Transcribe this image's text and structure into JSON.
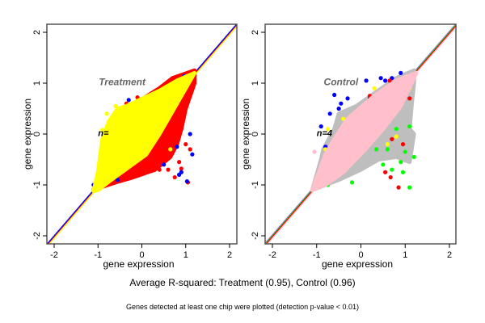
{
  "chart_data": [
    {
      "type": "scatter",
      "title": "Treatment",
      "annotation": "n=",
      "xlabel": "gene expression",
      "ylabel": "gene expression",
      "xlim": [
        -2.15,
        2.15
      ],
      "ylim": [
        -2.15,
        2.15
      ],
      "xticks": [
        -2,
        -1,
        0,
        1,
        2
      ],
      "yticks": [
        -2,
        -1,
        0,
        1,
        2
      ],
      "grid": false,
      "reference_lines": [
        {
          "slope": 1,
          "intercept": -0.02,
          "color": "#ff0000"
        },
        {
          "slope": 1,
          "intercept": 0,
          "color": "#0000ff"
        },
        {
          "slope": 1,
          "intercept": -0.05,
          "color": "#ffff00"
        }
      ],
      "series": [
        {
          "color": "#ff0000",
          "envelope": [
            [
              -1.1,
              -1.1
            ],
            [
              -0.9,
              -0.6
            ],
            [
              -0.5,
              0.0
            ],
            [
              -0.3,
              0.5
            ],
            [
              0,
              0.68
            ],
            [
              0.4,
              0.9
            ],
            [
              0.7,
              1.1
            ],
            [
              1.2,
              1.25
            ],
            [
              1.2,
              1.0
            ],
            [
              1.0,
              0.5
            ],
            [
              0.9,
              0.1
            ],
            [
              0.8,
              -0.2
            ],
            [
              0.65,
              -0.45
            ],
            [
              0.3,
              -0.7
            ],
            [
              -0.2,
              -0.85
            ],
            [
              -0.6,
              -0.95
            ],
            [
              -0.95,
              -1.05
            ]
          ],
          "points": [
            [
              1.05,
              -0.95
            ],
            [
              1.1,
              -0.3
            ],
            [
              0.9,
              -0.68
            ],
            [
              0.85,
              -0.55
            ],
            [
              0.6,
              -0.7
            ],
            [
              -0.1,
              0.72
            ],
            [
              0.9,
              0.1
            ],
            [
              1.0,
              -0.2
            ],
            [
              -0.6,
              -0.95
            ],
            [
              0.75,
              -0.85
            ],
            [
              0.4,
              -0.7
            ],
            [
              -0.35,
              0.6
            ]
          ]
        },
        {
          "color": "#0000ff",
          "points": [
            [
              0.97,
              1.14
            ],
            [
              -0.3,
              0.67
            ],
            [
              1.1,
              0
            ],
            [
              0.9,
              -0.75
            ],
            [
              1.03,
              -0.93
            ],
            [
              0.8,
              -0.25
            ],
            [
              0.5,
              -0.6
            ],
            [
              -0.55,
              -0.9
            ],
            [
              1.15,
              -0.4
            ],
            [
              0.85,
              -0.8
            ],
            [
              0.7,
              0.7
            ],
            [
              -1.1,
              -1.0
            ]
          ]
        },
        {
          "color": "#ffff00",
          "envelope": [
            [
              -1.1,
              -1.12
            ],
            [
              -1.0,
              -0.75
            ],
            [
              -0.9,
              -0.1
            ],
            [
              -0.75,
              0.25
            ],
            [
              -0.55,
              0.5
            ],
            [
              -0.35,
              0.55
            ],
            [
              -0.1,
              0.65
            ],
            [
              0.4,
              0.85
            ],
            [
              0.8,
              1.05
            ],
            [
              1.2,
              1.2
            ],
            [
              0.9,
              0.75
            ],
            [
              0.6,
              0.3
            ],
            [
              0.4,
              0.0
            ],
            [
              0.1,
              -0.4
            ],
            [
              -0.3,
              -0.65
            ],
            [
              -0.7,
              -0.9
            ],
            [
              -1.0,
              -1.1
            ]
          ],
          "points": [
            [
              -0.7,
              0.3
            ],
            [
              -0.6,
              0.55
            ],
            [
              -0.5,
              0.5
            ],
            [
              -0.9,
              0.08
            ],
            [
              -0.8,
              0.4
            ],
            [
              0.65,
              -0.3
            ],
            [
              -0.35,
              0.55
            ],
            [
              -0.1,
              0.65
            ]
          ]
        }
      ]
    },
    {
      "type": "scatter",
      "title": "Control",
      "annotation": "n=4",
      "xlabel": "gene expression",
      "ylabel": "gene expression",
      "xlim": [
        -2.15,
        2.15
      ],
      "ylim": [
        -2.15,
        2.15
      ],
      "xticks": [
        -2,
        -1,
        0,
        1,
        2
      ],
      "yticks": [
        -2,
        -1,
        0,
        1,
        2
      ],
      "grid": false,
      "reference_lines": [
        {
          "slope": 1,
          "intercept": 0.02,
          "color": "#b070e0"
        },
        {
          "slope": 1,
          "intercept": 0,
          "color": "#00cc00"
        },
        {
          "slope": 1,
          "intercept": -0.02,
          "color": "#ff0000"
        },
        {
          "slope": 1,
          "intercept": -0.05,
          "color": "#ffc0cb"
        }
      ],
      "series": [
        {
          "color": "#bebebe",
          "envelope": [
            [
              -1.1,
              -1.1
            ],
            [
              -0.9,
              -0.5
            ],
            [
              -0.85,
              -0.3
            ],
            [
              -0.6,
              0.1
            ],
            [
              -0.5,
              0.4
            ],
            [
              -0.1,
              0.55
            ],
            [
              0.3,
              0.8
            ],
            [
              0.8,
              1.1
            ],
            [
              1.2,
              1.25
            ],
            [
              1.2,
              1.0
            ],
            [
              1.15,
              0.6
            ],
            [
              1.1,
              0.1
            ],
            [
              1.2,
              0
            ],
            [
              1.1,
              -0.55
            ],
            [
              0.8,
              -0.45
            ],
            [
              0.4,
              -0.5
            ],
            [
              0,
              -0.7
            ],
            [
              -0.5,
              -0.9
            ],
            [
              -0.8,
              -1.0
            ]
          ],
          "points": []
        },
        {
          "color": "#0000ff",
          "points": [
            [
              -0.6,
              0.77
            ],
            [
              0.12,
              1.05
            ],
            [
              0.45,
              1.1
            ],
            [
              0.55,
              1.05
            ],
            [
              0.9,
              1.2
            ],
            [
              -0.45,
              0.6
            ],
            [
              -0.3,
              0.7
            ],
            [
              -0.9,
              0.15
            ],
            [
              -0.5,
              0.5
            ],
            [
              -0.7,
              0.4
            ],
            [
              0.2,
              0.7
            ],
            [
              0.7,
              1.1
            ],
            [
              -0.8,
              -0.25
            ]
          ]
        },
        {
          "color": "#00ff00",
          "points": [
            [
              1.1,
              -1.05
            ],
            [
              0.95,
              -0.75
            ],
            [
              1.2,
              -0.45
            ],
            [
              0.9,
              -0.55
            ],
            [
              0.6,
              -0.3
            ],
            [
              0.35,
              -0.3
            ],
            [
              -0.75,
              -1.0
            ],
            [
              0.8,
              0.1
            ],
            [
              1.1,
              0.15
            ],
            [
              0.5,
              -0.6
            ],
            [
              0.7,
              -0.7
            ],
            [
              -0.2,
              -0.95
            ],
            [
              1.0,
              -0.35
            ]
          ]
        },
        {
          "color": "#ff0000",
          "points": [
            [
              0.85,
              -1.05
            ],
            [
              0.67,
              -0.85
            ],
            [
              0.55,
              -0.75
            ],
            [
              1.1,
              0.7
            ],
            [
              0.7,
              -0.1
            ],
            [
              0.65,
              1.05
            ],
            [
              0.2,
              0.75
            ],
            [
              0.95,
              -0.2
            ],
            [
              -0.1,
              0.3
            ]
          ]
        },
        {
          "color": "#ffff00",
          "points": [
            [
              -0.75,
              0.1
            ],
            [
              0.8,
              -0.05
            ],
            [
              0.3,
              0.9
            ],
            [
              -0.4,
              0.3
            ],
            [
              0.6,
              -0.2
            ],
            [
              1.1,
              0.9
            ],
            [
              -0.8,
              -0.3
            ]
          ]
        },
        {
          "color": "#ffc0cb",
          "envelope": [
            [
              -1.1,
              -1.1
            ],
            [
              -0.8,
              -0.4
            ],
            [
              -0.6,
              -0.1
            ],
            [
              -0.3,
              0.3
            ],
            [
              0.3,
              0.75
            ],
            [
              0.8,
              1.05
            ],
            [
              1.25,
              1.2
            ],
            [
              0.9,
              0.55
            ],
            [
              0.5,
              0.1
            ],
            [
              0.1,
              -0.3
            ],
            [
              -0.4,
              -0.75
            ],
            [
              -0.8,
              -1.0
            ]
          ],
          "points": [
            [
              -1.05,
              -0.35
            ]
          ]
        }
      ]
    }
  ],
  "captions": {
    "main": "Average R-squared: Treatment (0.95), Control (0.96)",
    "note": "Genes detected at least one chip were plotted (detection p-value < 0.01)"
  }
}
